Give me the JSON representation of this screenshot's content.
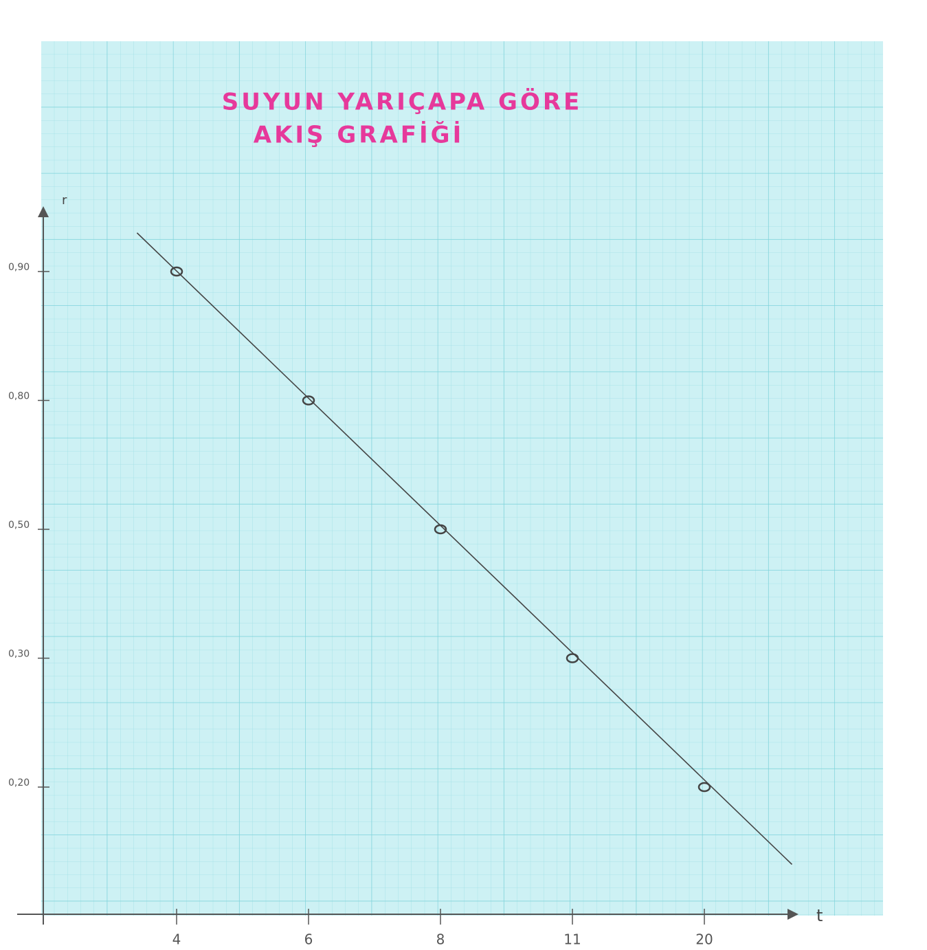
{
  "chart_data": {
    "type": "line",
    "title": [
      "SUYUN YARIÇAPA GÖRE",
      "AKIŞ GRAFİĞİ"
    ],
    "x_label": "t",
    "y_label": "r",
    "categories": [
      "4",
      "6",
      "8",
      "11",
      "20"
    ],
    "series": [
      {
        "color": "#444444",
        "values": [
          0.9,
          0.8,
          0.5,
          0.3,
          0.2
        ]
      }
    ],
    "yticks": [
      {
        "value": 0.9,
        "label": "0,90"
      },
      {
        "value": 0.8,
        "label": "0,80"
      },
      {
        "value": 0.5,
        "label": "0,50"
      },
      {
        "value": 0.3,
        "label": "0,30"
      },
      {
        "value": 0.2,
        "label": "0,20"
      }
    ],
    "title_color": "#e6399b",
    "grid": true
  }
}
